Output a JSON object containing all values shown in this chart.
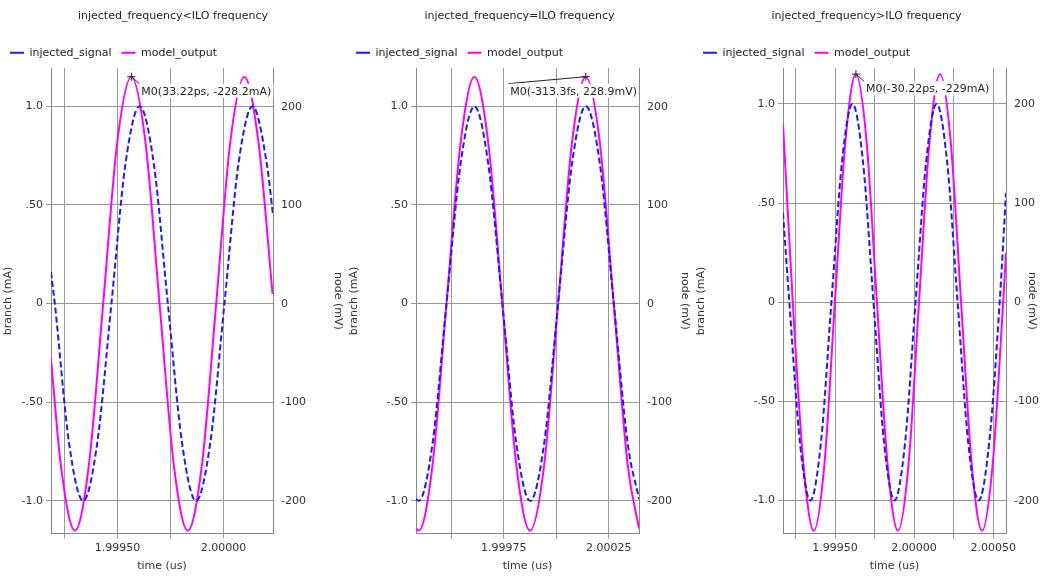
{
  "chart_data": [
    {
      "type": "line",
      "title": "injected_frequency<ILO frequency",
      "xlabel": "time (us)",
      "ylabel": "branch (mA)",
      "y2label": "node (mV)",
      "legend": "top left",
      "grid": true,
      "xlim": [
        1.999186,
        2.000233
      ],
      "xticks": [
        {
          "value": 1.99925,
          "label": null
        },
        {
          "value": 1.9995,
          "label": "1.99950"
        },
        {
          "value": 1.99975,
          "label": null
        },
        {
          "value": 2.0,
          "label": "2.00000"
        }
      ],
      "ylim": [
        -1.166,
        1.193
      ],
      "yticks": [
        {
          "value": -1,
          "label": "-1.0"
        },
        {
          "value": -0.5,
          "label": "-.50"
        },
        {
          "value": 0,
          "label": "0"
        },
        {
          "value": 0.5,
          "label": ".50"
        },
        {
          "value": 1,
          "label": "1.0"
        }
      ],
      "y2lim": [
        -233,
        239
      ],
      "y2ticks": [
        -200,
        -100,
        0,
        100,
        200
      ],
      "annotations": [
        {
          "text": "M0(33.22ps, -228.2mA)",
          "x": 1.999565,
          "y": 1.15
        }
      ],
      "series": [
        {
          "name": "injected_signal",
          "color": "#1a1aff",
          "line_style": "dashed",
          "axis": "y",
          "x": [
            1.999186,
            1.999204,
            1.999271,
            1.999338,
            1.999404,
            1.999471,
            1.999537,
            1.999604,
            1.999671,
            1.999737,
            1.999804,
            1.99987,
            1.999937,
            2.000004,
            2.00007,
            2.000137,
            2.000204,
            2.000233
          ],
          "values": [
            0.16,
            0,
            -0.707,
            -1,
            -0.707,
            0,
            0.707,
            1,
            0.707,
            0,
            -0.707,
            -1,
            -0.707,
            0,
            0.707,
            1,
            0.707,
            0.45
          ]
        },
        {
          "name": "model_output",
          "color": "#ff00ff",
          "line_style": "solid",
          "axis": "y2",
          "x": [
            1.999186,
            1.999232,
            1.999299,
            1.999365,
            1.999432,
            1.999498,
            1.999565,
            1.999632,
            1.999698,
            1.999765,
            1.999831,
            1.999898,
            1.999965,
            2.000031,
            2.000098,
            2.000165,
            2.000231
          ],
          "values": [
            -56,
            -163,
            -230,
            -163,
            0,
            163,
            230,
            163,
            0,
            -163,
            -230,
            -163,
            0,
            163,
            230,
            163,
            10
          ]
        }
      ]
    },
    {
      "type": "line",
      "title": "injected_frequency=ILO frequency",
      "xlabel": "time (us)",
      "ylabel": "branch (mA)",
      "y2label": "node (mV)",
      "legend": "top left",
      "grid": true,
      "xlim": [
        1.999333,
        2.000394
      ],
      "xticks": [
        {
          "value": 1.9995,
          "label": null
        },
        {
          "value": 1.99975,
          "label": "1.99975"
        },
        {
          "value": 2.0,
          "label": null
        },
        {
          "value": 2.00025,
          "label": "2.00025"
        }
      ],
      "ylim": [
        -1.166,
        1.193
      ],
      "yticks": [
        {
          "value": -1,
          "label": "-1.0"
        },
        {
          "value": -0.5,
          "label": "-.50"
        },
        {
          "value": 0,
          "label": "0"
        },
        {
          "value": 0.5,
          "label": ".50"
        },
        {
          "value": 1,
          "label": "1.0"
        }
      ],
      "y2lim": [
        -233,
        239
      ],
      "y2ticks": [
        -200,
        -100,
        0,
        100,
        200
      ],
      "annotations": [
        {
          "text": "M0(-313.3fs, 228.9mV)",
          "x": 2.000141,
          "y": 1.15
        }
      ],
      "series": [
        {
          "name": "injected_signal",
          "color": "#1a1aff",
          "line_style": "dashed",
          "axis": "y",
          "x": [
            1.999333,
            1.999346,
            1.999412,
            1.999478,
            1.999545,
            1.999611,
            1.999677,
            1.999744,
            1.99981,
            1.999876,
            1.999943,
            2.000009,
            2.000075,
            2.000141,
            2.000208,
            2.000274,
            2.00034,
            2.000394
          ],
          "values": [
            -0.99,
            -1,
            -0.707,
            0,
            0.707,
            1,
            0.707,
            0,
            -0.707,
            -1,
            -0.707,
            0,
            0.707,
            1,
            0.707,
            0,
            -0.707,
            -0.99
          ]
        },
        {
          "name": "model_output",
          "color": "#ff00ff",
          "line_style": "solid",
          "axis": "y2",
          "x": [
            1.999333,
            1.999346,
            1.999412,
            1.999478,
            1.999545,
            1.999611,
            1.999677,
            1.999744,
            1.99981,
            1.999876,
            1.999943,
            2.000009,
            2.000075,
            2.000141,
            2.000208,
            2.000274,
            2.00034,
            2.000394
          ],
          "values": [
            -228,
            -230,
            -163,
            0,
            163,
            230,
            163,
            0,
            -163,
            -230,
            -163,
            0,
            163,
            230,
            163,
            0,
            -163,
            -228
          ]
        }
      ]
    },
    {
      "type": "line",
      "title": "injected_frequency>ILO frequency",
      "xlabel": "time (us)",
      "ylabel": "branch (mA)",
      "y2label": "node (mV)",
      "legend": "top left",
      "grid": true,
      "xlim": [
        1.999171,
        2.000581
      ],
      "xticks": [
        {
          "value": 1.99925,
          "label": null
        },
        {
          "value": 1.9995,
          "label": "1.99950"
        },
        {
          "value": 1.99975,
          "label": null
        },
        {
          "value": 2.0,
          "label": "2.00000"
        },
        {
          "value": 2.00025,
          "label": null
        },
        {
          "value": 2.0005,
          "label": "2.00050"
        }
      ],
      "ylim": [
        -1.167,
        1.18
      ],
      "yticks": [
        {
          "value": -1,
          "label": "-1.0"
        },
        {
          "value": -0.5,
          "label": "-.50"
        },
        {
          "value": 0,
          "label": "0"
        },
        {
          "value": 0.5,
          "label": ".50"
        },
        {
          "value": 1,
          "label": "1.0"
        }
      ],
      "y2lim": [
        -233,
        236
      ],
      "y2ticks": [
        -200,
        -100,
        0,
        100,
        200
      ],
      "annotations": [
        {
          "text": "M0(-30.22ps, -229mA)",
          "x": 1.999632,
          "y": 1.15
        }
      ],
      "series": [
        {
          "name": "injected_signal",
          "color": "#1a1aff",
          "line_style": "dashed",
          "axis": "y",
          "x": [
            1.999171,
            1.999211,
            1.999278,
            1.999344,
            1.999411,
            1.999477,
            1.999544,
            1.99961,
            1.999677,
            1.999743,
            1.99981,
            1.999876,
            1.999943,
            2.000009,
            2.000076,
            2.000142,
            2.000209,
            2.000275,
            2.000342,
            2.000408,
            2.000475,
            2.000541,
            2.000581
          ],
          "values": [
            0.45,
            0,
            -0.707,
            -1,
            -0.707,
            0,
            0.707,
            1,
            0.707,
            0,
            -0.707,
            -1,
            -0.707,
            0,
            0.707,
            1,
            0.707,
            0,
            -0.707,
            -1,
            -0.707,
            0,
            0.55
          ]
        },
        {
          "name": "model_output",
          "color": "#ff00ff",
          "line_style": "solid",
          "axis": "y2",
          "x": [
            1.999171,
            1.999233,
            1.9993,
            1.999366,
            1.999433,
            1.999499,
            1.999566,
            1.999632,
            1.999699,
            1.999765,
            1.999832,
            1.999898,
            1.999965,
            2.000031,
            2.000098,
            2.000164,
            2.000231,
            2.000297,
            2.000364,
            2.00043,
            2.000497,
            2.000563,
            2.000581
          ],
          "values": [
            180,
            0,
            -163,
            -230,
            -163,
            0,
            163,
            230,
            163,
            0,
            -163,
            -230,
            -163,
            0,
            163,
            230,
            163,
            0,
            -163,
            -230,
            -163,
            0,
            50
          ]
        }
      ]
    }
  ]
}
